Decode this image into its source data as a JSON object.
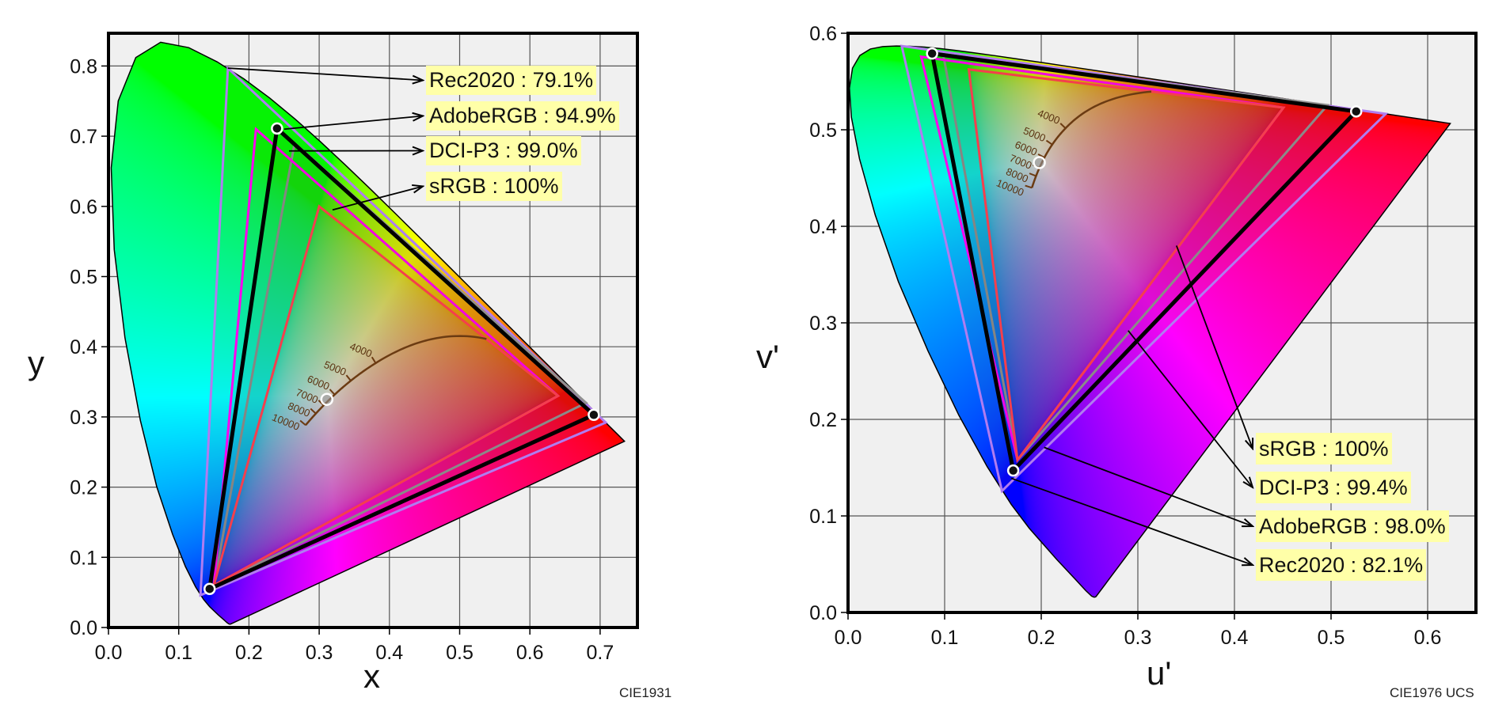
{
  "chart_data": [
    {
      "type": "chromaticity",
      "caption": "CIE1931",
      "xlabel": "x",
      "ylabel": "y",
      "xlim": [
        0,
        0.753
      ],
      "ylim": [
        0,
        0.847
      ],
      "xticks": [
        "0.0",
        "0.1",
        "0.2",
        "0.3",
        "0.4",
        "0.5",
        "0.6",
        "0.7"
      ],
      "yticks": [
        "0.0",
        "0.1",
        "0.2",
        "0.3",
        "0.4",
        "0.5",
        "0.6",
        "0.7",
        "0.8"
      ],
      "grid": true,
      "background": "#f0f0f0",
      "spectral_locus": [
        [
          0.1741,
          0.005
        ],
        [
          0.1738,
          0.0049
        ],
        [
          0.1733,
          0.0048
        ],
        [
          0.1726,
          0.0048
        ],
        [
          0.1714,
          0.0051
        ],
        [
          0.1689,
          0.0069
        ],
        [
          0.1644,
          0.0109
        ],
        [
          0.1566,
          0.0177
        ],
        [
          0.144,
          0.0297
        ],
        [
          0.1355,
          0.0399
        ],
        [
          0.1241,
          0.0578
        ],
        [
          0.1096,
          0.0868
        ],
        [
          0.0913,
          0.1327
        ],
        [
          0.0687,
          0.2007
        ],
        [
          0.0454,
          0.295
        ],
        [
          0.0235,
          0.4127
        ],
        [
          0.0082,
          0.5384
        ],
        [
          0.0039,
          0.6548
        ],
        [
          0.0139,
          0.7502
        ],
        [
          0.0389,
          0.812
        ],
        [
          0.0743,
          0.8338
        ],
        [
          0.1142,
          0.8262
        ],
        [
          0.1547,
          0.8059
        ],
        [
          0.1929,
          0.7816
        ],
        [
          0.2296,
          0.7543
        ],
        [
          0.2658,
          0.7243
        ],
        [
          0.3016,
          0.6923
        ],
        [
          0.3373,
          0.6589
        ],
        [
          0.3731,
          0.6245
        ],
        [
          0.4087,
          0.5896
        ],
        [
          0.4441,
          0.5547
        ],
        [
          0.4788,
          0.5202
        ],
        [
          0.5125,
          0.4866
        ],
        [
          0.5448,
          0.4544
        ],
        [
          0.5752,
          0.4242
        ],
        [
          0.6029,
          0.3965
        ],
        [
          0.627,
          0.3725
        ],
        [
          0.6482,
          0.3514
        ],
        [
          0.6658,
          0.334
        ],
        [
          0.6915,
          0.3083
        ],
        [
          0.7079,
          0.292
        ],
        [
          0.719,
          0.2809
        ],
        [
          0.726,
          0.274
        ],
        [
          0.73,
          0.27
        ],
        [
          0.7334,
          0.2666
        ],
        [
          0.7347,
          0.2653
        ]
      ],
      "gamuts": [
        {
          "label": "Rec2020 : 79.1%",
          "color": "#b07cf0",
          "primaries": [
            [
              0.708,
              0.292
            ],
            [
              0.17,
              0.797
            ],
            [
              0.131,
              0.046
            ]
          ]
        },
        {
          "label": "AdobeRGB : 94.9%",
          "color": "#ff00ee",
          "primaries": [
            [
              0.64,
              0.33
            ],
            [
              0.21,
              0.71
            ],
            [
              0.15,
              0.06
            ]
          ]
        },
        {
          "label": "DCI-P3 : 99.0%",
          "color": "#909090",
          "primaries": [
            [
              0.68,
              0.32
            ],
            [
              0.265,
              0.69
            ],
            [
              0.15,
              0.06
            ]
          ]
        },
        {
          "label": "sRGB : 100%",
          "color": "#ff4050",
          "primaries": [
            [
              0.64,
              0.33
            ],
            [
              0.3,
              0.6
            ],
            [
              0.15,
              0.06
            ]
          ]
        }
      ],
      "measured": {
        "color": "#000000",
        "primaries": [
          [
            0.691,
            0.303
          ],
          [
            0.24,
            0.711
          ],
          [
            0.144,
            0.055
          ]
        ],
        "white_point": [
          0.311,
          0.325
        ]
      },
      "planckian_locus": {
        "color": "#6b3b12",
        "tick_labels": [
          "4000",
          "5000",
          "6000",
          "7000",
          "8000",
          "10000"
        ]
      }
    },
    {
      "type": "chromaticity",
      "caption": "CIE1976 UCS",
      "xlabel": "u'",
      "ylabel": "v'",
      "xlim": [
        0,
        0.65
      ],
      "ylim": [
        0,
        0.6
      ],
      "xticks": [
        "0.0",
        "0.1",
        "0.2",
        "0.3",
        "0.4",
        "0.5",
        "0.6"
      ],
      "yticks": [
        "0.0",
        "0.1",
        "0.2",
        "0.3",
        "0.4",
        "0.5",
        "0.6"
      ],
      "grid": true,
      "background": "#f0f0f0",
      "gamuts": [
        {
          "label": "sRGB : 100%",
          "color": "#ff4050",
          "primaries": [
            [
              0.4507,
              0.5229
            ],
            [
              0.125,
              0.5625
            ],
            [
              0.1754,
              0.1579
            ]
          ]
        },
        {
          "label": "DCI-P3 : 99.4%",
          "color": "#909090",
          "primaries": [
            [
              0.4964,
              0.5255
            ],
            [
              0.0986,
              0.5777
            ],
            [
              0.1754,
              0.1579
            ]
          ]
        },
        {
          "label": "AdobeRGB : 98.0%",
          "color": "#ff00ee",
          "primaries": [
            [
              0.4507,
              0.5229
            ],
            [
              0.0757,
              0.5757
            ],
            [
              0.1754,
              0.1579
            ]
          ]
        },
        {
          "label": "Rec2020 : 82.1%",
          "color": "#b07cf0",
          "primaries": [
            [
              0.5566,
              0.5165
            ],
            [
              0.0556,
              0.5868
            ],
            [
              0.1593,
              0.1258
            ]
          ]
        }
      ],
      "measured": {
        "color": "#000000",
        "primaries": [
          [
            0.526,
            0.519
          ],
          [
            0.087,
            0.579
          ],
          [
            0.171,
            0.147
          ]
        ],
        "white_point": [
          0.198,
          0.466
        ]
      },
      "planckian_locus": {
        "color": "#6b3b12",
        "tick_labels": [
          "4000",
          "5000",
          "6000",
          "7000",
          "8000",
          "10000"
        ]
      }
    }
  ]
}
